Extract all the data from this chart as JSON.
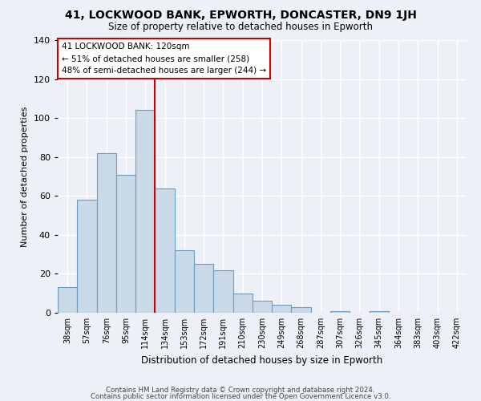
{
  "title": "41, LOCKWOOD BANK, EPWORTH, DONCASTER, DN9 1JH",
  "subtitle": "Size of property relative to detached houses in Epworth",
  "xlabel": "Distribution of detached houses by size in Epworth",
  "ylabel": "Number of detached properties",
  "bar_vals_full": [
    13,
    58,
    82,
    71,
    104,
    64,
    32,
    25,
    22,
    10,
    6,
    4,
    3,
    0,
    1,
    0,
    1,
    0,
    0,
    0,
    0
  ],
  "categories": [
    "38sqm",
    "57sqm",
    "76sqm",
    "95sqm",
    "114sqm",
    "134sqm",
    "153sqm",
    "172sqm",
    "191sqm",
    "210sqm",
    "230sqm",
    "249sqm",
    "268sqm",
    "287sqm",
    "307sqm",
    "326sqm",
    "345sqm",
    "364sqm",
    "383sqm",
    "403sqm",
    "422sqm"
  ],
  "bar_color": "#c9d9e8",
  "bar_edge_color": "#6a9cbf",
  "red_line_index": 4.5,
  "annotation_title": "41 LOCKWOOD BANK: 120sqm",
  "annotation_line1": "← 51% of detached houses are smaller (258)",
  "annotation_line2": "48% of semi-detached houses are larger (244) →",
  "annotation_box_color": "#ffffff",
  "annotation_box_edge": "#cc0000",
  "red_line_color": "#cc0000",
  "ylim": [
    0,
    140
  ],
  "yticks": [
    0,
    20,
    40,
    60,
    80,
    100,
    120,
    140
  ],
  "footer1": "Contains HM Land Registry data © Crown copyright and database right 2024.",
  "footer2": "Contains public sector information licensed under the Open Government Licence v3.0.",
  "background_color": "#edf1f7",
  "grid_color": "#ffffff"
}
